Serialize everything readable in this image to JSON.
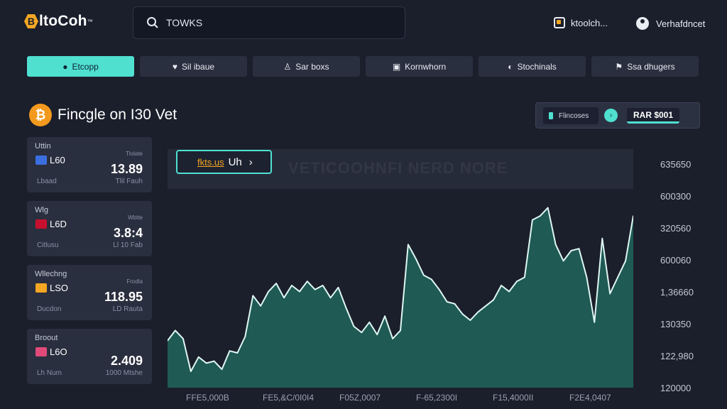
{
  "header": {
    "logo_badge": "B",
    "logo_text": "ltoCoh",
    "logo_mark": "™",
    "search_value": "TOWKS",
    "user_link_a": "ktoolch...",
    "user_link_b": "Verhafdncet"
  },
  "tabs": [
    {
      "label": "Etcopp",
      "icon": "apple-icon",
      "glyph": "●",
      "active": true
    },
    {
      "label": "Sil ibaue",
      "icon": "heart-icon",
      "glyph": "♥",
      "active": false
    },
    {
      "label": "Sar boxs",
      "icon": "person-icon",
      "glyph": "♙",
      "active": false
    },
    {
      "label": "Kornwhorn",
      "icon": "briefcase-icon",
      "glyph": "▣",
      "active": false
    },
    {
      "label": "Stochinals",
      "icon": "bag-icon",
      "glyph": "◐",
      "active": false
    },
    {
      "label": "Ssa dhugers",
      "icon": "flag-icon",
      "glyph": "⚑",
      "active": false
    }
  ],
  "page": {
    "coin_symbol": "₿",
    "title": "Fincgle on I30 Vet"
  },
  "price_panel": {
    "pill_label": "Flincoses",
    "dot_glyph": "›",
    "price": "RAR $001"
  },
  "cards": [
    {
      "category": "Uttin",
      "flag_color": "#3b6fe0",
      "pair": "L60",
      "mini": "Tlolate",
      "value": "13.89",
      "sub": "Lbaad",
      "foot": "Tlil Fauh"
    },
    {
      "category": "Wlg",
      "flag_color": "#c8102e",
      "pair": "L6D",
      "mini": "Wbtte",
      "value": "3.8:4",
      "sub": "Citlusu",
      "foot": "Ll 10 Fab"
    },
    {
      "category": "Wllechng",
      "flag_color": "#f5a623",
      "pair": "LSO",
      "mini": "Frodla",
      "value": "118.95",
      "sub": "Ducdon",
      "foot": "LD Rauta"
    },
    {
      "category": "Broout",
      "flag_color": "#e04a7a",
      "pair": "L6O",
      "mini": "",
      "value": "2.409",
      "sub": "Lh Num",
      "foot": "1000 Mtshe"
    }
  ],
  "chart": {
    "ticker_prefix": "fkts.us",
    "ticker_unit": "Uh",
    "ticker_chevron": "›",
    "watermark": "VETICOOHNFI NERD NORE",
    "accent_color": "#4fe0d0",
    "fill_color": "#1f5a55"
  },
  "chart_data": {
    "type": "area",
    "yticks": [
      "635650",
      "600300",
      "320560",
      "600060",
      "1,36660",
      "130350",
      "122,980",
      "120000"
    ],
    "xticks": [
      "FFE5,000B",
      "FE5,&C/0I0I4",
      "F05Z,0007",
      "F-65,2300I",
      "F15,4000II",
      "F2E4,0407"
    ],
    "ylim": [
      0,
      100
    ],
    "values": [
      23,
      28,
      24,
      8,
      15,
      12,
      13,
      9,
      18,
      17,
      25,
      45,
      40,
      47,
      51,
      44,
      50,
      47,
      52,
      48,
      50,
      44,
      49,
      39,
      30,
      27,
      32,
      26,
      35,
      24,
      28,
      70,
      63,
      55,
      53,
      48,
      42,
      41,
      36,
      33,
      37,
      40,
      43,
      50,
      47,
      52,
      54,
      82,
      84,
      88,
      70,
      62,
      67,
      68,
      54,
      32,
      73,
      46,
      54,
      62,
      84
    ]
  }
}
